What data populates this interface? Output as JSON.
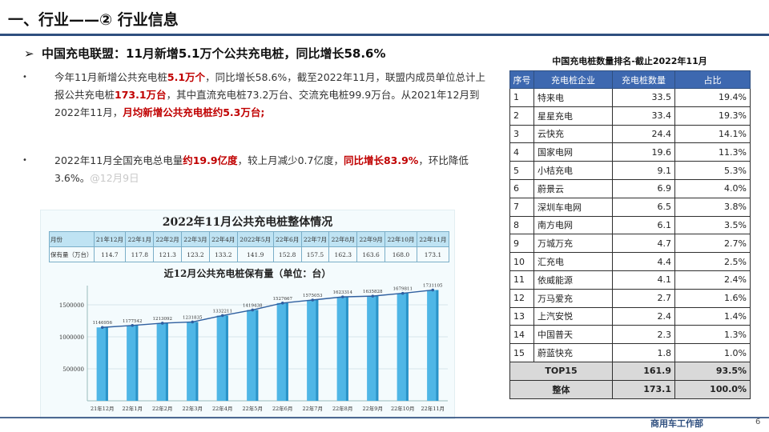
{
  "header": {
    "title": "一、行业——② 行业信息"
  },
  "headline": {
    "arrow": "➢",
    "text": "中国充电联盟：11月新增5.1万个公共充电桩，同比增长58.6%"
  },
  "paragraphs": [
    {
      "bullet": "•",
      "parts": [
        {
          "text": "今年11月新增公共充电桩",
          "style": "normal"
        },
        {
          "text": "5.1万个",
          "style": "red"
        },
        {
          "text": "，同比增长58.6%，截至2022年11月，联盟内成员单位总计上报公共充电桩",
          "style": "normal"
        },
        {
          "text": "173.1万台",
          "style": "red"
        },
        {
          "text": "，其中直流充电桩73.2万台、交流充电桩99.9万台。从2021年12月到2022年11月，",
          "style": "normal"
        },
        {
          "text": "月均新增公共充电桩约5.3万台;",
          "style": "red"
        }
      ]
    },
    {
      "bullet": "•",
      "parts": [
        {
          "text": "2022年11月全国充电总电量",
          "style": "normal"
        },
        {
          "text": "约19.9亿度",
          "style": "red"
        },
        {
          "text": "，较上月减少0.7亿度，",
          "style": "normal"
        },
        {
          "text": "同比增长83.9%",
          "style": "red"
        },
        {
          "text": "，环比降低3.6%。",
          "style": "normal"
        },
        {
          "text": "@12月9日",
          "style": "grey"
        }
      ]
    }
  ],
  "embedded_chart": {
    "title": "2022年11月公共充电桩整体情况",
    "table": {
      "row_headers": [
        "月份",
        "保有量（万台）"
      ],
      "months": [
        "21年12月",
        "22年1月",
        "22年2月",
        "22年3月",
        "22年4月",
        "2022年5月",
        "22年6月",
        "22年7月",
        "22年8月",
        "22年9月",
        "22年10月",
        "22年11月"
      ],
      "values": [
        "114.7",
        "117.8",
        "121.3",
        "123.2",
        "133.2",
        "141.9",
        "152.8",
        "157.5",
        "162.3",
        "163.6",
        "168.0",
        "173.1"
      ]
    },
    "subtitle": "近12月公共充电桩保有量（单位：台）"
  },
  "chart_data": {
    "type": "bar",
    "title": "近12月公共充电桩保有量（单位：台）",
    "categories": [
      "21年12月",
      "22年1月",
      "22年2月",
      "22年3月",
      "22年4月",
      "22年5月",
      "22年6月",
      "22年7月",
      "22年8月",
      "22年9月",
      "22年10月",
      "22年11月"
    ],
    "values": [
      1146956,
      1177542,
      1213092,
      1231835,
      1332211,
      1419438,
      1527667,
      1575053,
      1623314,
      1635828,
      1679811,
      1731105
    ],
    "yticks": [
      "500000",
      "1000000",
      "1500000"
    ],
    "ylim": [
      0,
      1750000
    ],
    "grid": true,
    "colors": {
      "bar": "#4fb6e6",
      "bar_dark": "#2a93c8",
      "line": "#2f5f9f"
    }
  },
  "ranking": {
    "title": "中国充电桩数量排名-截止2022年11月",
    "columns": [
      "序号",
      "充电桩企业",
      "充电桩数量",
      "占比"
    ],
    "rows": [
      [
        "1",
        "特来电",
        "33.5",
        "19.4%"
      ],
      [
        "2",
        "星星充电",
        "33.4",
        "19.3%"
      ],
      [
        "3",
        "云快充",
        "24.4",
        "14.1%"
      ],
      [
        "4",
        "国家电网",
        "19.6",
        "11.3%"
      ],
      [
        "5",
        "小桔充电",
        "9.1",
        "5.3%"
      ],
      [
        "6",
        "蔚景云",
        "6.9",
        "4.0%"
      ],
      [
        "7",
        "深圳车电网",
        "6.5",
        "3.8%"
      ],
      [
        "8",
        "南方电网",
        "6.1",
        "3.5%"
      ],
      [
        "9",
        "万城万充",
        "4.7",
        "2.7%"
      ],
      [
        "10",
        "汇充电",
        "4.4",
        "2.5%"
      ],
      [
        "11",
        "依威能源",
        "4.1",
        "2.4%"
      ],
      [
        "12",
        "万马爱充",
        "2.7",
        "1.6%"
      ],
      [
        "13",
        "上汽安悦",
        "2.4",
        "1.4%"
      ],
      [
        "14",
        "中国普天",
        "2.3",
        "1.3%"
      ],
      [
        "15",
        "蔚蓝快充",
        "1.8",
        "1.0%"
      ]
    ],
    "summary": [
      [
        "TOP15",
        "161.9",
        "93.5%"
      ],
      [
        "整体",
        "173.1",
        "100.0%"
      ]
    ]
  },
  "footer": {
    "department": "商用车工作部",
    "page": "6"
  }
}
